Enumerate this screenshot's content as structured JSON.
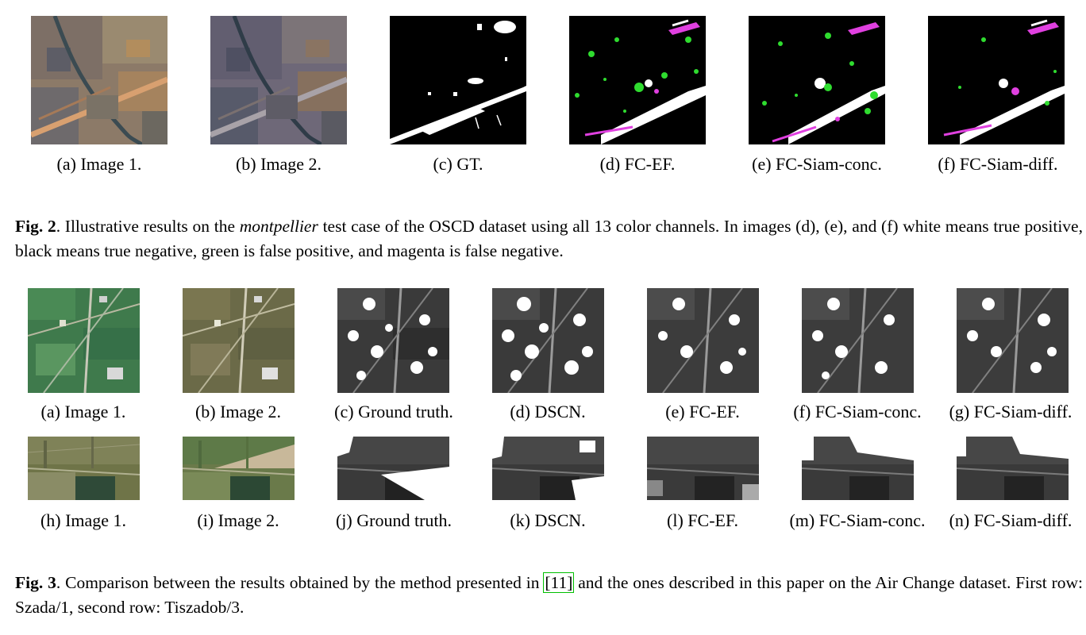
{
  "fig2": {
    "captions": [
      "(a) Image 1.",
      "(b) Image 2.",
      "(c) GT.",
      "(d) FC-EF.",
      "(e) FC-Siam-conc.",
      "(f) FC-Siam-diff."
    ],
    "label": "Fig. 2",
    "text_1": ". Illustrative results on the ",
    "text_italic": "montpellier",
    "text_2": " test case of the OSCD dataset using all 13 color channels. In images (d), (e), and (f) white means true positive, black means true negative, green is false positive, and magenta is false negative."
  },
  "fig3": {
    "row1_captions": [
      "(a) Image 1.",
      "(b) Image 2.",
      "(c) Ground truth.",
      "(d) DSCN.",
      "(e) FC-EF.",
      "(f) FC-Siam-conc.",
      "(g) FC-Siam-diff."
    ],
    "row2_captions": [
      "(h) Image 1.",
      "(i) Image 2.",
      "(j) Ground truth.",
      "(k) DSCN.",
      "(l) FC-EF.",
      "(m) FC-Siam-conc.",
      "(n) FC-Siam-diff."
    ],
    "label": "Fig. 3",
    "text_1": ". Comparison between the results obtained by the method presented in ",
    "citation": "[11]",
    "text_2": " and the ones described in this paper on the Air Change dataset. First row: Szada/1, second row: Tiszadob/3."
  },
  "colors": {
    "true_positive": "#ffffff",
    "true_negative": "#000000",
    "false_positive": "#2fdc2f",
    "false_negative": "#e040e0",
    "citation_box": "#00c000"
  }
}
